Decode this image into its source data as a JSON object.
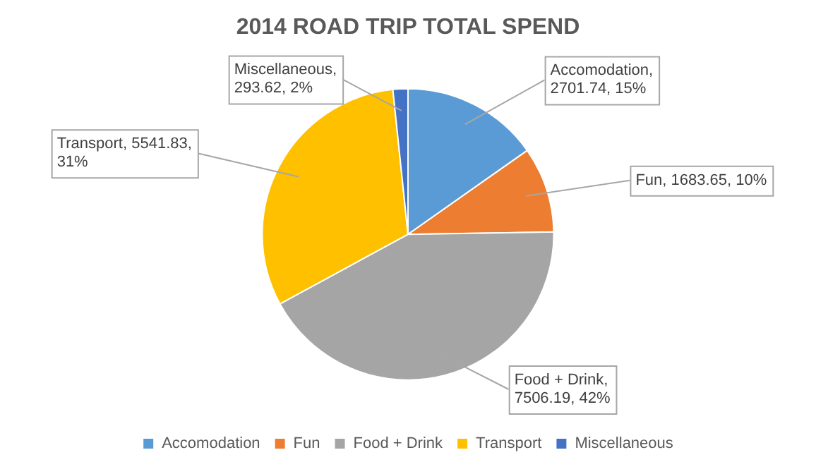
{
  "chart_data": {
    "type": "pie",
    "title": "2014 ROAD TRIP TOTAL SPEND",
    "categories": [
      "Accomodation",
      "Fun",
      "Food + Drink",
      "Transport",
      "Miscellaneous"
    ],
    "values": [
      2701.74,
      1683.65,
      7506.19,
      5541.83,
      293.62
    ],
    "colors": [
      "#5b9bd5",
      "#ed7d31",
      "#a5a5a5",
      "#ffc000",
      "#4472c4"
    ],
    "value_labels": [
      "Accomodation, 2701.74, 15%",
      "Fun, 1683.65, 10%",
      "Food + Drink, 7506.19, 42%",
      "Transport, 5541.83, 31%",
      "Miscellaneous, 293.62, 2%"
    ],
    "legend": "bottom"
  }
}
